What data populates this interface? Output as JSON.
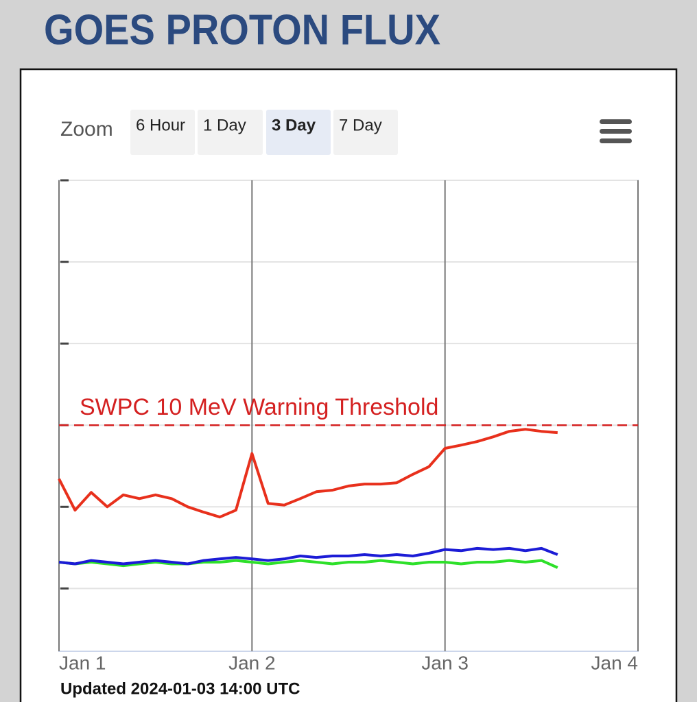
{
  "header": {
    "title": "GOES PROTON FLUX"
  },
  "zoom": {
    "label": "Zoom",
    "buttons": [
      "6 Hour",
      "1 Day",
      "3 Day",
      "7 Day"
    ],
    "active": 2
  },
  "chart_data": {
    "type": "line",
    "log_y": true,
    "x": [
      1,
      1.0833,
      1.1667,
      1.25,
      1.3333,
      1.4167,
      1.5,
      1.5833,
      1.6667,
      1.75,
      1.8333,
      1.9167,
      2,
      2.0833,
      2.1667,
      2.25,
      2.3333,
      2.4167,
      2.5,
      2.5833,
      2.6667,
      2.75,
      2.8333,
      2.9167,
      3,
      3.0833,
      3.1667,
      3.25,
      3.3333,
      3.4167,
      3.5,
      3.5833
    ],
    "xlim": [
      1,
      4
    ],
    "xticks": [
      {
        "value": 1,
        "label": "Jan 1"
      },
      {
        "value": 2,
        "label": "Jan 2"
      },
      {
        "value": 3,
        "label": "Jan 3"
      },
      {
        "value": 4,
        "label": "Jan 4"
      }
    ],
    "ylim": [
      0.017,
      10000
    ],
    "yticks": [
      0.1,
      1,
      10,
      100,
      1000,
      10000
    ],
    "grid": true,
    "series": [
      {
        "color": "#e8301c",
        "values": [
          2.2,
          0.91,
          1.5,
          1.0,
          1.4,
          1.26,
          1.4,
          1.26,
          1.0,
          0.86,
          0.75,
          0.91,
          4.5,
          1.1,
          1.05,
          1.26,
          1.53,
          1.6,
          1.8,
          1.9,
          1.9,
          1.97,
          2.5,
          3.1,
          5.2,
          5.7,
          6.3,
          7.2,
          8.4,
          8.9,
          8.4,
          8.1
        ]
      },
      {
        "color": "#1c1cd6",
        "values": [
          0.21,
          0.2,
          0.22,
          0.21,
          0.2,
          0.21,
          0.22,
          0.21,
          0.2,
          0.22,
          0.23,
          0.24,
          0.23,
          0.22,
          0.23,
          0.25,
          0.24,
          0.25,
          0.25,
          0.26,
          0.25,
          0.26,
          0.25,
          0.27,
          0.3,
          0.29,
          0.31,
          0.3,
          0.31,
          0.29,
          0.31,
          0.26
        ]
      },
      {
        "color": "#2ee02a",
        "values": [
          0.21,
          0.2,
          0.21,
          0.2,
          0.19,
          0.2,
          0.21,
          0.2,
          0.2,
          0.21,
          0.21,
          0.22,
          0.21,
          0.2,
          0.21,
          0.22,
          0.21,
          0.2,
          0.21,
          0.21,
          0.22,
          0.21,
          0.2,
          0.21,
          0.21,
          0.2,
          0.21,
          0.21,
          0.22,
          0.21,
          0.22,
          0.18
        ]
      }
    ],
    "threshold": {
      "value": 10,
      "label": "SWPC 10 MeV Warning Threshold",
      "color": "#d42020"
    }
  },
  "footer": {
    "updated": "Updated 2024-01-03 14:00 UTC"
  }
}
